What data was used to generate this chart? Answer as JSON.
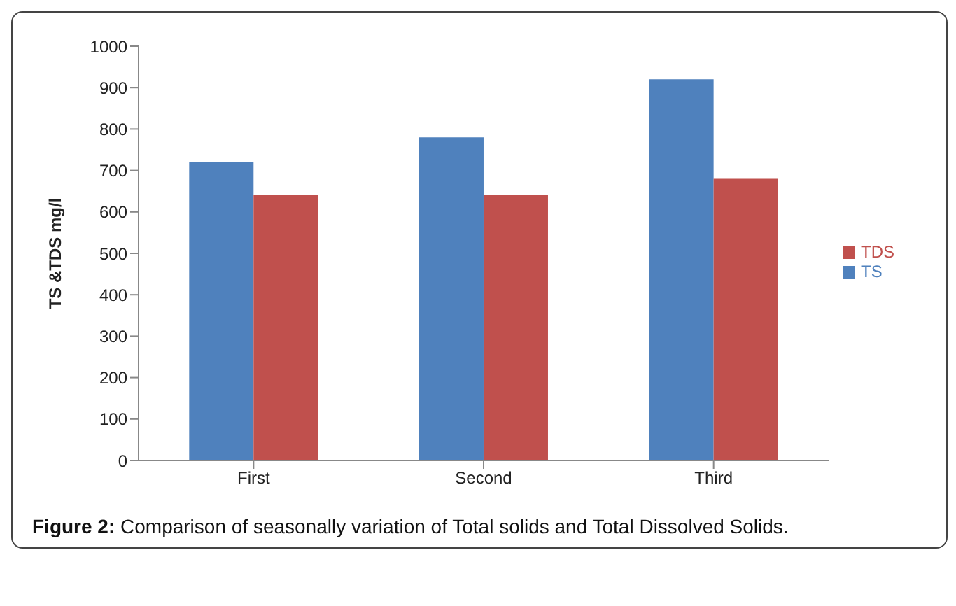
{
  "chart_data": {
    "type": "bar",
    "ylabel": "TS &TDS mg/l",
    "categories": [
      "First",
      "Second",
      "Third"
    ],
    "series": [
      {
        "name": "TS",
        "color": "#4f81bd",
        "values": [
          720,
          780,
          920
        ]
      },
      {
        "name": "TDS",
        "color": "#c0504d",
        "values": [
          640,
          640,
          680
        ]
      }
    ],
    "ylim": [
      0,
      1000
    ],
    "yticks": [
      0,
      100,
      200,
      300,
      400,
      500,
      600,
      700,
      800,
      900,
      1000
    ],
    "grid": false,
    "legend": "right",
    "annotations": [
      "Figure 2: Comparison of seasonally variation of Total solids and Total Dissolved Solids."
    ]
  }
}
